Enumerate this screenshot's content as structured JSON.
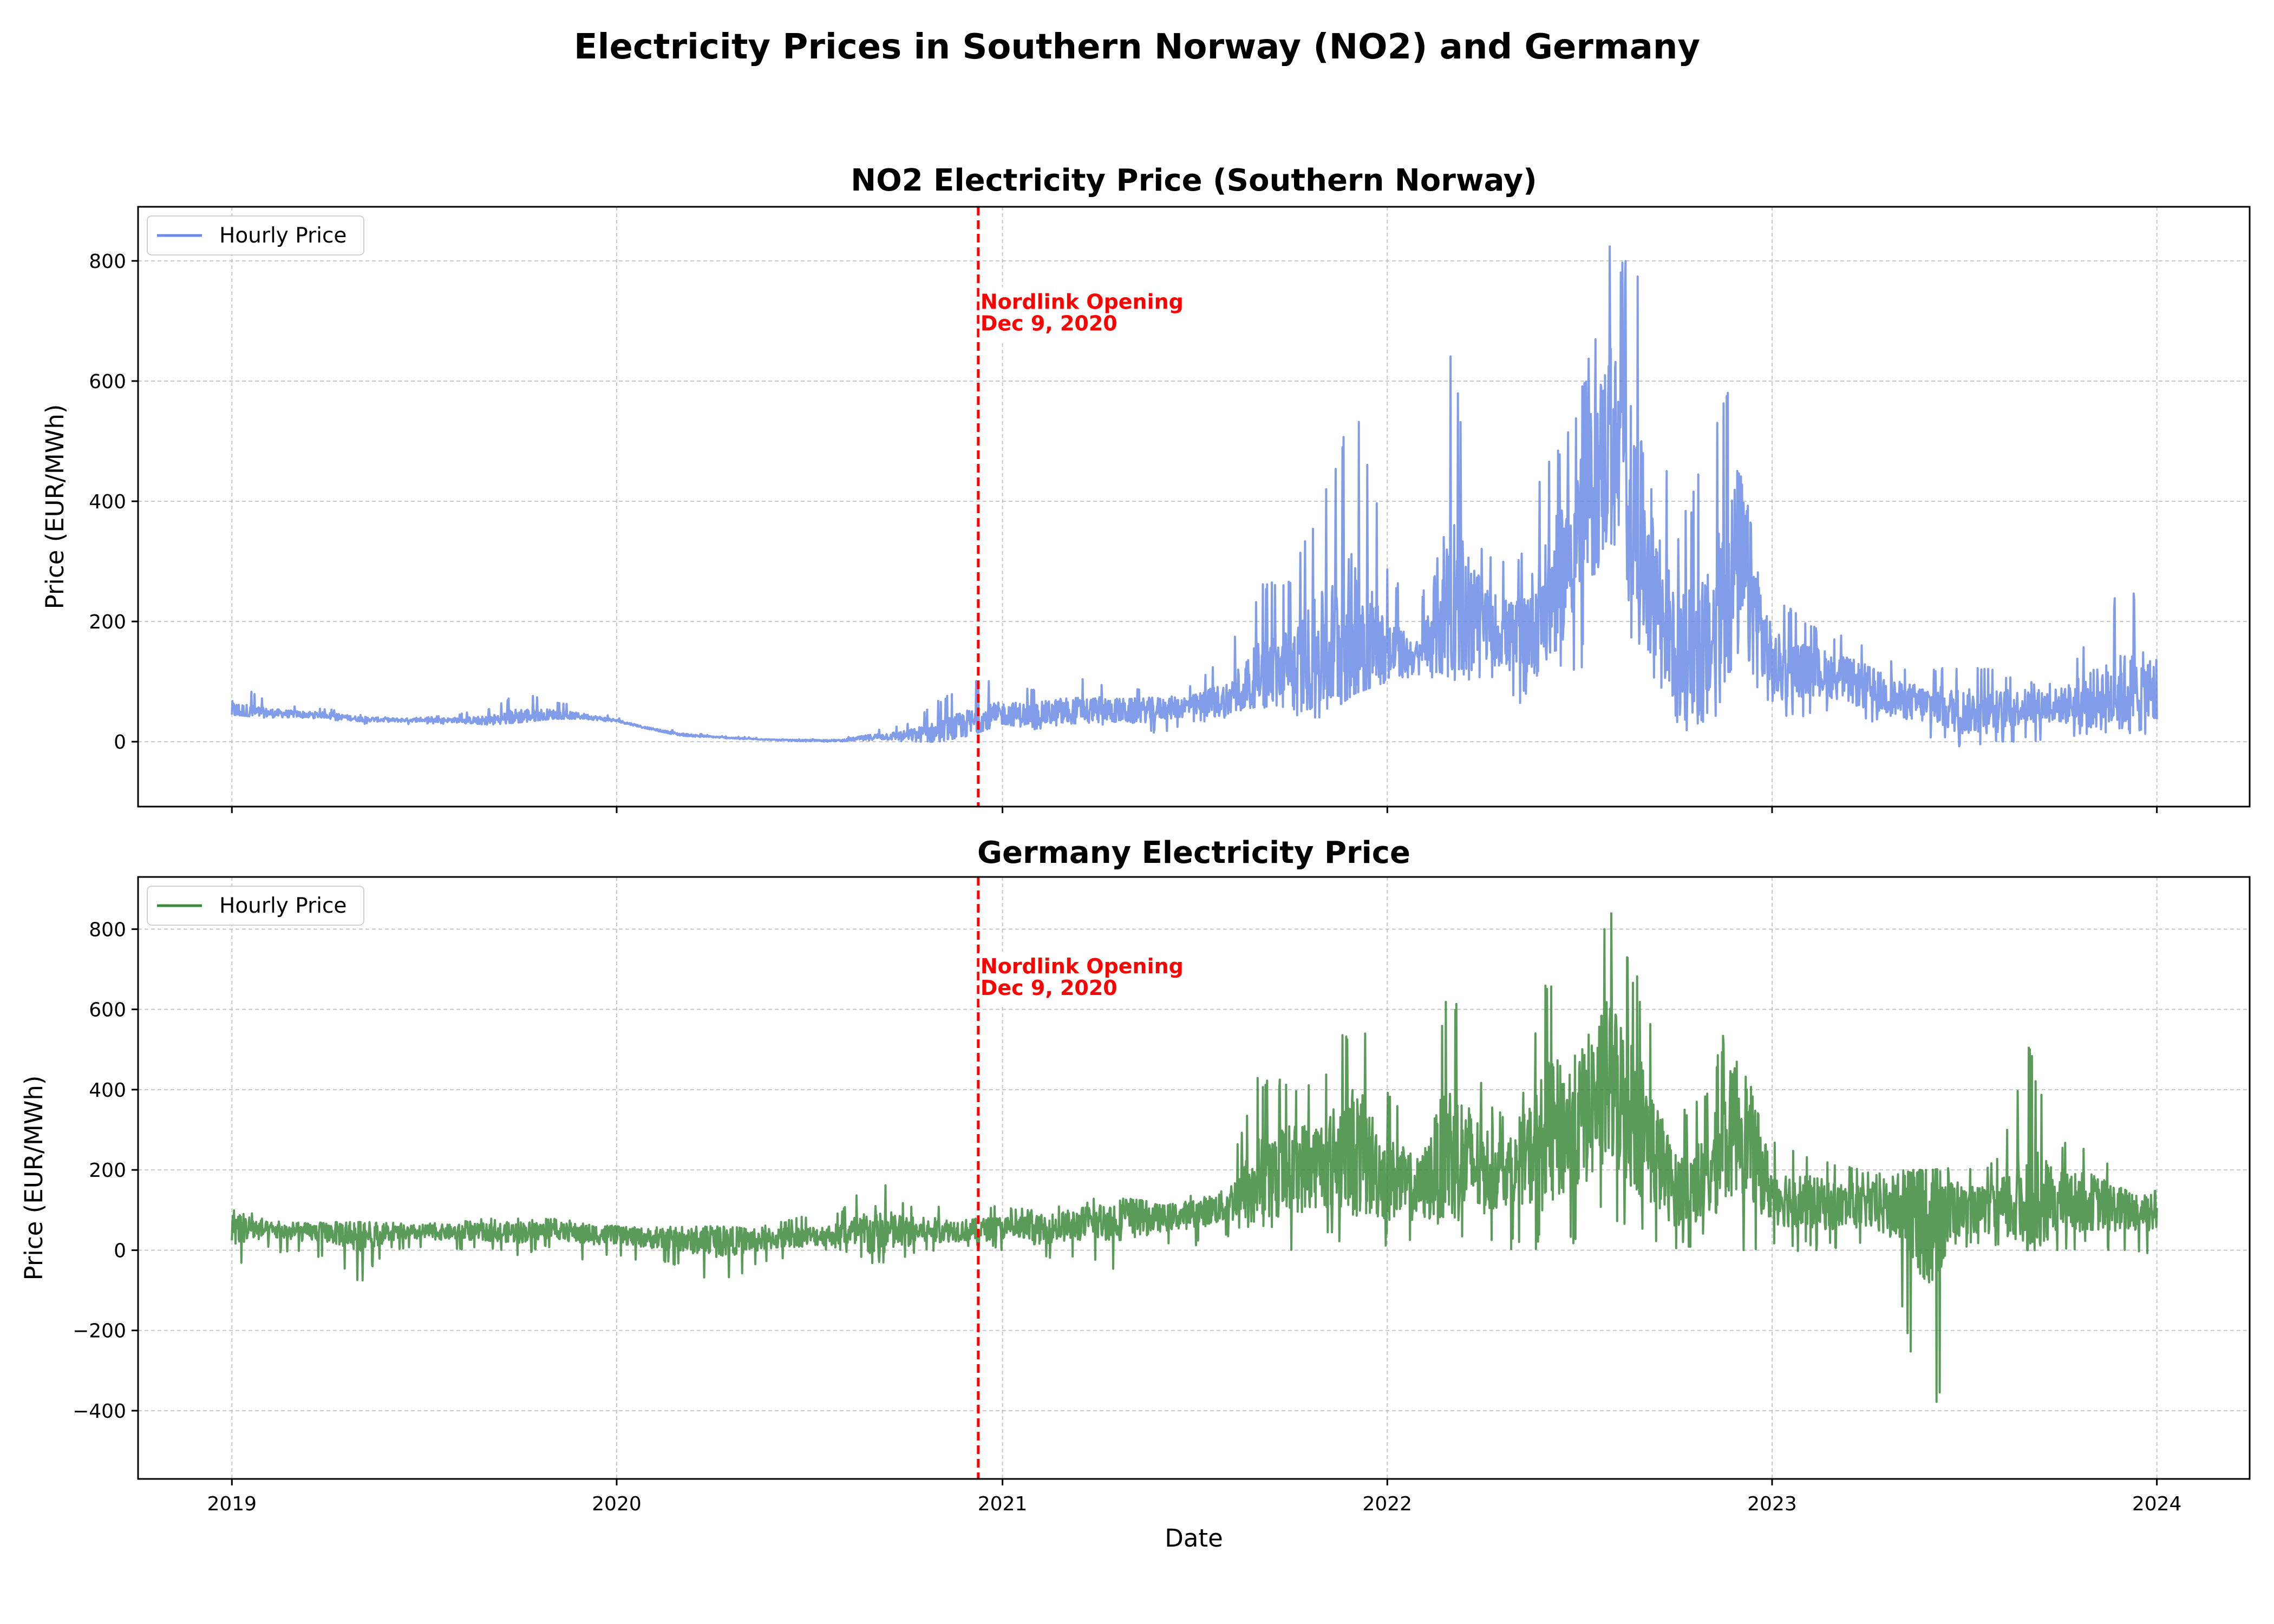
{
  "figure": {
    "title": "Electricity Prices in Southern Norway (NO2) and Germany"
  },
  "colors": {
    "no2": "#6b8ce6",
    "germany": "#3d8a3d",
    "event": "#ff0000",
    "grid": "#b0b0b0"
  },
  "chart_data": [
    {
      "type": "line",
      "title": "NO2 Electricity Price (Southern Norway)",
      "xlabel": "",
      "ylabel": "Price (EUR/MWh)",
      "xlim": [
        "2018-10-04",
        "2024-03-29"
      ],
      "ylim": [
        -108,
        890
      ],
      "xticks": [
        "2019-01-01",
        "2020-01-01",
        "2021-01-01",
        "2022-01-01",
        "2023-01-01",
        "2024-01-01"
      ],
      "xticklabels": [
        "",
        "",
        "",
        "",
        "",
        ""
      ],
      "yticks": [
        0,
        200,
        400,
        600,
        800
      ],
      "yticklabels": [
        "0",
        "200",
        "400",
        "600",
        "800"
      ],
      "grid": true,
      "legend": "upper-left",
      "series": [
        {
          "name": "Hourly Price",
          "envelope": {
            "dates": [
              "2019-01-01",
              "2019-02-01",
              "2019-03-01",
              "2019-04-01",
              "2019-05-01",
              "2019-06-01",
              "2019-07-01",
              "2019-08-01",
              "2019-09-01",
              "2019-10-01",
              "2019-11-01",
              "2019-12-01",
              "2020-01-01",
              "2020-02-01",
              "2020-03-01",
              "2020-04-01",
              "2020-05-01",
              "2020-06-01",
              "2020-07-01",
              "2020-08-01",
              "2020-09-01",
              "2020-10-01",
              "2020-11-01",
              "2020-12-01",
              "2021-01-01",
              "2021-02-01",
              "2021-03-01",
              "2021-04-01",
              "2021-05-01",
              "2021-06-01",
              "2021-07-01",
              "2021-08-01",
              "2021-09-01",
              "2021-10-01",
              "2021-11-01",
              "2021-12-01",
              "2022-01-01",
              "2022-02-01",
              "2022-03-01",
              "2022-04-01",
              "2022-05-01",
              "2022-06-01",
              "2022-07-01",
              "2022-08-01",
              "2022-09-01",
              "2022-10-01",
              "2022-11-01",
              "2022-12-01",
              "2023-01-01",
              "2023-02-01",
              "2023-03-01",
              "2023-04-01",
              "2023-05-01",
              "2023-06-01",
              "2023-07-01",
              "2023-08-01",
              "2023-09-01",
              "2023-10-01",
              "2023-11-01",
              "2023-12-01"
            ],
            "low": [
              45,
              40,
              40,
              38,
              30,
              28,
              30,
              30,
              28,
              32,
              38,
              38,
              32,
              20,
              10,
              6,
              4,
              2,
              0,
              0,
              2,
              0,
              0,
              10,
              30,
              20,
              30,
              30,
              10,
              15,
              30,
              40,
              60,
              20,
              40,
              80,
              100,
              110,
              100,
              100,
              60,
              80,
              100,
              180,
              150,
              20,
              10,
              50,
              30,
              40,
              40,
              30,
              20,
              0,
              -10,
              -10,
              0,
              -5,
              10,
              10
            ],
            "high": [
              110,
              70,
              60,
              55,
              45,
              40,
              40,
              45,
              55,
              85,
              70,
              55,
              40,
              25,
              18,
              10,
              8,
              4,
              4,
              5,
              20,
              30,
              70,
              100,
              110,
              90,
              120,
              100,
              90,
              85,
              95,
              150,
              260,
              280,
              410,
              600,
              300,
              200,
              670,
              320,
              290,
              480,
              560,
              840,
              760,
              350,
              490,
              670,
              260,
              200,
              180,
              170,
              130,
              120,
              130,
              120,
              100,
              100,
              190,
              260
            ],
            "mid": [
              50,
              48,
              46,
              44,
              38,
              36,
              36,
              36,
              35,
              42,
              45,
              42,
              35,
              22,
              12,
              8,
              5,
              3,
              2,
              2,
              8,
              10,
              15,
              30,
              45,
              45,
              50,
              55,
              50,
              55,
              60,
              70,
              110,
              120,
              150,
              180,
              150,
              140,
              250,
              200,
              170,
              220,
              350,
              500,
              320,
              150,
              150,
              300,
              120,
              120,
              110,
              90,
              70,
              60,
              50,
              50,
              60,
              60,
              70,
              80
            ]
          }
        }
      ],
      "annotations": [
        {
          "text": "Nordlink Opening\nDec 9, 2020",
          "x": "2020-12-09",
          "y": 720
        }
      ],
      "vline": {
        "x": "2020-12-09",
        "style": "dashed"
      }
    },
    {
      "type": "line",
      "title": "Germany Electricity Price",
      "xlabel": "Date",
      "ylabel": "Price (EUR/MWh)",
      "xlim": [
        "2018-10-04",
        "2024-03-29"
      ],
      "ylim": [
        -570,
        930
      ],
      "xticks": [
        "2019-01-01",
        "2020-01-01",
        "2021-01-01",
        "2022-01-01",
        "2023-01-01",
        "2024-01-01"
      ],
      "xticklabels": [
        "2019",
        "2020",
        "2021",
        "2022",
        "2023",
        "2024"
      ],
      "yticks": [
        -400,
        -200,
        0,
        200,
        400,
        600,
        800
      ],
      "yticklabels": [
        "−400",
        "−200",
        "0",
        "200",
        "400",
        "600",
        "800"
      ],
      "grid": true,
      "legend": "upper-left",
      "series": [
        {
          "name": "Hourly Price",
          "envelope": {
            "dates": [
              "2019-01-01",
              "2019-02-01",
              "2019-03-01",
              "2019-04-01",
              "2019-05-01",
              "2019-06-01",
              "2019-07-01",
              "2019-08-01",
              "2019-09-01",
              "2019-10-01",
              "2019-11-01",
              "2019-12-01",
              "2020-01-01",
              "2020-02-01",
              "2020-03-01",
              "2020-04-01",
              "2020-05-01",
              "2020-06-01",
              "2020-07-01",
              "2020-08-01",
              "2020-09-01",
              "2020-10-01",
              "2020-11-01",
              "2020-12-01",
              "2021-01-01",
              "2021-02-01",
              "2021-03-01",
              "2021-04-01",
              "2021-05-01",
              "2021-06-01",
              "2021-07-01",
              "2021-08-01",
              "2021-09-01",
              "2021-10-01",
              "2021-11-01",
              "2021-12-01",
              "2022-01-01",
              "2022-02-01",
              "2022-03-01",
              "2022-04-01",
              "2022-05-01",
              "2022-06-01",
              "2022-07-01",
              "2022-08-01",
              "2022-09-01",
              "2022-10-01",
              "2022-11-01",
              "2022-12-01",
              "2023-01-01",
              "2023-02-01",
              "2023-03-01",
              "2023-04-01",
              "2023-05-01",
              "2023-06-01",
              "2023-07-01",
              "2023-08-01",
              "2023-09-01",
              "2023-10-01",
              "2023-11-01",
              "2023-12-01"
            ],
            "low": [
              -50,
              0,
              -10,
              -20,
              -90,
              0,
              0,
              0,
              0,
              -20,
              10,
              -30,
              -20,
              -30,
              -40,
              -80,
              -60,
              -30,
              0,
              0,
              -50,
              -20,
              0,
              10,
              0,
              -30,
              -20,
              -40,
              -70,
              0,
              10,
              30,
              60,
              0,
              10,
              0,
              10,
              0,
              10,
              0,
              0,
              0,
              20,
              50,
              0,
              0,
              10,
              0,
              -10,
              0,
              0,
              0,
              -130,
              -500,
              0,
              0,
              0,
              0,
              0,
              -20
            ],
            "high": [
              120,
              80,
              70,
              70,
              70,
              70,
              70,
              70,
              80,
              80,
              80,
              70,
              60,
              60,
              60,
              60,
              60,
              70,
              90,
              100,
              200,
              120,
              110,
              110,
              110,
              100,
              120,
              130,
              130,
              120,
              140,
              180,
              440,
              420,
              420,
              620,
              400,
              280,
              700,
              430,
              280,
              680,
              640,
              870,
              640,
              330,
              420,
              660,
              270,
              250,
              220,
              200,
              200,
              200,
              210,
              220,
              520,
              280,
              260,
              180
            ],
            "mid": [
              60,
              50,
              45,
              45,
              40,
              42,
              45,
              45,
              45,
              45,
              50,
              40,
              38,
              30,
              25,
              20,
              25,
              30,
              35,
              40,
              45,
              45,
              50,
              50,
              55,
              50,
              60,
              70,
              80,
              80,
              90,
              110,
              180,
              200,
              220,
              250,
              180,
              150,
              250,
              200,
              200,
              280,
              320,
              420,
              300,
              150,
              180,
              330,
              140,
              120,
              110,
              110,
              100,
              90,
              100,
              100,
              120,
              120,
              120,
              100
            ]
          }
        }
      ],
      "annotations": [
        {
          "text": "Nordlink Opening\nDec 9, 2020",
          "x": "2020-12-09",
          "y": 690
        }
      ],
      "vline": {
        "x": "2020-12-09",
        "style": "dashed"
      }
    }
  ]
}
